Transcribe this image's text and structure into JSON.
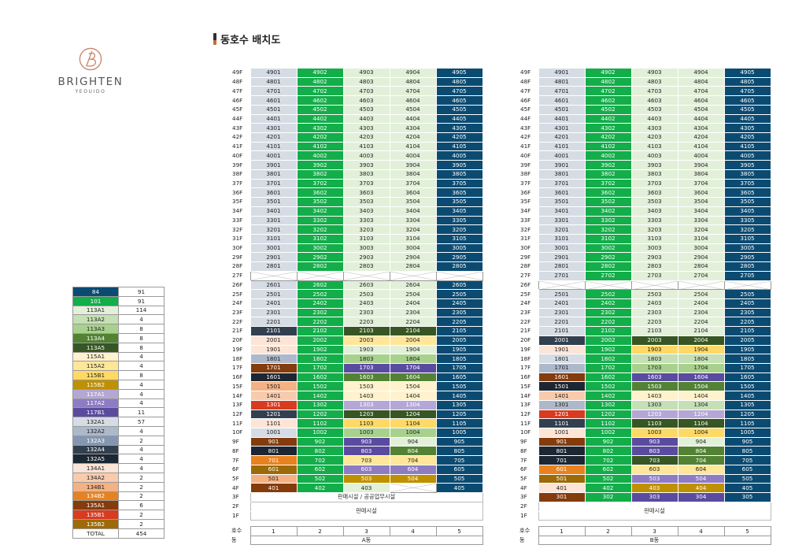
{
  "brand": {
    "name": "BRIGHTEN",
    "sub": "YEOUIDO"
  },
  "title": "동호수 배치도",
  "floors_high": [
    "49F",
    "48F",
    "47F",
    "46F",
    "45F",
    "44F",
    "43F",
    "42F",
    "41F",
    "40F",
    "39F",
    "38F",
    "37F",
    "36F",
    "35F",
    "34F",
    "33F",
    "32F",
    "31F",
    "30F",
    "29F",
    "28F"
  ],
  "floors_low": [
    "25F",
    "24F",
    "23F",
    "22F",
    "21F",
    "20F",
    "19F",
    "18F",
    "17F",
    "16F",
    "15F",
    "14F",
    "13F",
    "12F",
    "11F",
    "10F",
    "9F",
    "8F",
    "7F",
    "6F",
    "5F",
    "4F"
  ],
  "floors_misc": {
    "f27": "27F",
    "f26": "26F",
    "f3": "3F",
    "f2": "2F",
    "f1": "1F"
  },
  "footer": {
    "ho_label": "호수",
    "dong_label": "동",
    "units": [
      "1",
      "2",
      "3",
      "4",
      "5"
    ],
    "a_dong": "A동",
    "b_dong": "B동"
  },
  "a_commercial_3f": "판매시설 / 공공업무시설",
  "a_commercial_12f": "판매시설",
  "b_commercial_12f": "판매시설",
  "types": [
    {
      "code": "84",
      "count": "91",
      "bg": "#0b4b72",
      "fg": "#ffffff"
    },
    {
      "code": "101",
      "count": "91",
      "bg": "#13ad4a",
      "fg": "#ffffff"
    },
    {
      "code": "113A1",
      "count": "114",
      "bg": "#e2f0d9",
      "fg": "#222222"
    },
    {
      "code": "113A2",
      "count": "4",
      "bg": "#c5e0b4",
      "fg": "#222222"
    },
    {
      "code": "113A3",
      "count": "8",
      "bg": "#a9d18e",
      "fg": "#222222"
    },
    {
      "code": "113A4",
      "count": "8",
      "bg": "#548235",
      "fg": "#ffffff"
    },
    {
      "code": "113A5",
      "count": "8",
      "bg": "#375623",
      "fg": "#ffffff"
    },
    {
      "code": "115A1",
      "count": "4",
      "bg": "#fff2cc",
      "fg": "#222222"
    },
    {
      "code": "115A2",
      "count": "4",
      "bg": "#ffe699",
      "fg": "#222222"
    },
    {
      "code": "115B1",
      "count": "8",
      "bg": "#ffd966",
      "fg": "#222222"
    },
    {
      "code": "115B2",
      "count": "4",
      "bg": "#bf9000",
      "fg": "#ffffff"
    },
    {
      "code": "117A1",
      "count": "4",
      "bg": "#b4a7d6",
      "fg": "#ffffff"
    },
    {
      "code": "117A2",
      "count": "4",
      "bg": "#8e7cc3",
      "fg": "#ffffff"
    },
    {
      "code": "117B1",
      "count": "11",
      "bg": "#5b4ba0",
      "fg": "#ffffff"
    },
    {
      "code": "132A1",
      "count": "57",
      "bg": "#d6dce4",
      "fg": "#222222"
    },
    {
      "code": "132A2",
      "count": "4",
      "bg": "#adb9ca",
      "fg": "#222222"
    },
    {
      "code": "132A3",
      "count": "2",
      "bg": "#8497b0",
      "fg": "#ffffff"
    },
    {
      "code": "132A4",
      "count": "4",
      "bg": "#323f4f",
      "fg": "#ffffff"
    },
    {
      "code": "132A5",
      "count": "4",
      "bg": "#1c2733",
      "fg": "#ffffff"
    },
    {
      "code": "134A1",
      "count": "4",
      "bg": "#fce4d6",
      "fg": "#222222"
    },
    {
      "code": "134A2",
      "count": "2",
      "bg": "#f8cbad",
      "fg": "#222222"
    },
    {
      "code": "134B1",
      "count": "2",
      "bg": "#f4b183",
      "fg": "#222222"
    },
    {
      "code": "134B2",
      "count": "2",
      "bg": "#e8821e",
      "fg": "#ffffff"
    },
    {
      "code": "135A1",
      "count": "6",
      "bg": "#843c0c",
      "fg": "#ffffff"
    },
    {
      "code": "135B1",
      "count": "2",
      "bg": "#d83b1f",
      "fg": "#ffffff"
    },
    {
      "code": "135B2",
      "count": "2",
      "bg": "#9c6b08",
      "fg": "#ffffff"
    }
  ],
  "total": {
    "label": "TOTAL",
    "value": "454"
  },
  "a_cols_high": [
    "132A1",
    "101",
    "113A1",
    "113A1",
    "84"
  ],
  "b_cols_high": [
    "132A1",
    "101",
    "113A1",
    "113A1",
    "84"
  ],
  "a_lowbase": [
    "132A1",
    "101",
    "113A1",
    "113A1",
    "84"
  ],
  "a_overrides": {
    "21": [
      "132A4",
      "101",
      "113A5",
      "113A5",
      "84"
    ],
    "20": [
      "134A1",
      "101",
      "115A2",
      "115A2",
      "84"
    ],
    "19": [
      "134A1",
      "101",
      "113A1",
      "113A1",
      "84"
    ],
    "18": [
      "132A2",
      "101",
      "113A3",
      "113A3",
      "84"
    ],
    "17": [
      "135A1",
      "101",
      "117B1",
      "117B1",
      "84"
    ],
    "16": [
      "132A5",
      "101",
      "113A4",
      "113A4",
      "84"
    ],
    "15": [
      "134B1",
      "101",
      "115A1",
      "115A1",
      "84"
    ],
    "14": [
      "134A2",
      "101",
      "115A1",
      "115A1",
      "84"
    ],
    "13": [
      "135B1",
      "101",
      "117A1",
      "117A1",
      "84"
    ],
    "12": [
      "132A4",
      "101",
      "113A5",
      "113A5",
      "84"
    ],
    "11": [
      "134A1",
      "101",
      "115B1",
      "115B1",
      "84"
    ],
    "10": [
      "132A1",
      "101",
      "113A3",
      "113A3",
      "84"
    ],
    "9": [
      "135A1",
      "101",
      "117B1",
      "113A1",
      "84"
    ],
    "8": [
      "132A5",
      "101",
      "117B1",
      "113A4",
      "84"
    ],
    "7": [
      "134B2",
      "101",
      "115A2",
      "115A2",
      "84"
    ],
    "6": [
      "135B2",
      "101",
      "117A2",
      "117A2",
      "84"
    ],
    "5": [
      "134B1",
      "101",
      "115B2",
      "115B2",
      "84"
    ],
    "4": [
      "135A1",
      "101",
      "113A1",
      "blank",
      "84"
    ]
  },
  "b_lowbase": [
    "132A1",
    "101",
    "113A1",
    "113A1",
    "84"
  ],
  "b_overrides": {
    "21": [
      "132A1",
      "101",
      "113A1",
      "113A1",
      "84"
    ],
    "20": [
      "132A4",
      "101",
      "113A5",
      "113A5",
      "84"
    ],
    "19": [
      "134A1",
      "101",
      "115B1",
      "115B1",
      "84"
    ],
    "18": [
      "132A1",
      "101",
      "113A2",
      "113A2",
      "84"
    ],
    "17": [
      "132A2",
      "101",
      "113A3",
      "113A3",
      "84"
    ],
    "16": [
      "135A1",
      "101",
      "117B1",
      "117B1",
      "84"
    ],
    "15": [
      "132A5",
      "101",
      "113A4",
      "113A4",
      "84"
    ],
    "14": [
      "134A2",
      "101",
      "115A1",
      "115A1",
      "84"
    ],
    "13": [
      "132A2",
      "101",
      "113A2",
      "113A2",
      "84"
    ],
    "12": [
      "135B1",
      "101",
      "117A1",
      "117A1",
      "84"
    ],
    "11": [
      "132A4",
      "101",
      "113A5",
      "113A5",
      "84"
    ],
    "10": [
      "134A1",
      "101",
      "115B1",
      "115B1",
      "84"
    ],
    "9": [
      "135A1",
      "101",
      "117B1",
      "113A1",
      "84"
    ],
    "8": [
      "132A5",
      "101",
      "117B1",
      "113A4",
      "84"
    ],
    "7": [
      "132A5",
      "101",
      "113A5",
      "113A4",
      "84"
    ],
    "6": [
      "134B2",
      "101",
      "115A2",
      "115A2",
      "84"
    ],
    "5": [
      "135B2",
      "101",
      "117A2",
      "117A2",
      "84"
    ],
    "4": [
      "134A1",
      "101",
      "115B2",
      "115B2",
      "84"
    ],
    "3": [
      "135A1",
      "101",
      "117B1",
      "117B1",
      "84"
    ]
  }
}
